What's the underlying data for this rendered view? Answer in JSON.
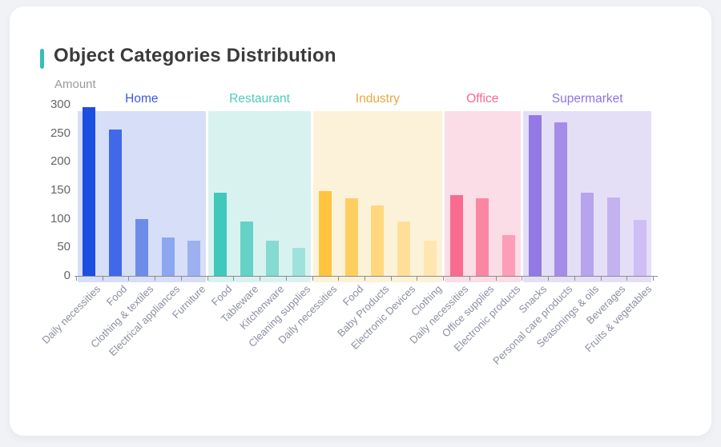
{
  "page": {
    "background_color": "#F1F2F5",
    "card_background_color": "#FFFFFF"
  },
  "header": {
    "title": "Object Categories Distribution",
    "accent_color": "#38BFB2"
  },
  "chart_data": {
    "type": "bar",
    "title": "Object Categories Distribution",
    "ylabel": "Amount",
    "xlabel": "",
    "ylim": [
      0,
      300
    ],
    "yticks": [
      0,
      50,
      100,
      150,
      200,
      250,
      300
    ],
    "grid": false,
    "legend_position": "none",
    "axis_color": "#8D8D8D",
    "ytick_label_color": "#666666",
    "xtick_label_color": "#8B90A0",
    "groups": [
      {
        "name": "Home",
        "label_color": "#3A5AE0",
        "band_color": "#D6DEF8",
        "bar_colors": [
          "#1D4EE2",
          "#3F69E8",
          "#6D8CEA",
          "#8CA6EF",
          "#9DB1F1"
        ],
        "items": [
          {
            "label": "Daily necessities",
            "value": 296
          },
          {
            "label": "Food",
            "value": 256
          },
          {
            "label": "Clothing & textiles",
            "value": 100
          },
          {
            "label": "Electrical appliances",
            "value": 67
          },
          {
            "label": "Furniture",
            "value": 61
          }
        ]
      },
      {
        "name": "Restaurant",
        "label_color": "#4FCBBD",
        "band_color": "#D8F2F0",
        "bar_colors": [
          "#3FC8BC",
          "#65D2C8",
          "#85DAD2",
          "#9FE2DC"
        ],
        "items": [
          {
            "label": "Food",
            "value": 146
          },
          {
            "label": "Tableware",
            "value": 95
          },
          {
            "label": "Kitchenware",
            "value": 62
          },
          {
            "label": "Cleaning supplies",
            "value": 49
          }
        ]
      },
      {
        "name": "Industry",
        "label_color": "#E8A93D",
        "band_color": "#FCF2D9",
        "bar_colors": [
          "#FFC440",
          "#FFCE60",
          "#FFD77E",
          "#FFDF98",
          "#FFE6B0"
        ],
        "items": [
          {
            "label": "Daily necessities",
            "value": 149
          },
          {
            "label": "Food",
            "value": 136
          },
          {
            "label": "Baby Products",
            "value": 123
          },
          {
            "label": "Electronic Devices",
            "value": 96
          },
          {
            "label": "Clothing",
            "value": 61
          }
        ]
      },
      {
        "name": "Office",
        "label_color": "#F9688E",
        "band_color": "#FBDDE7",
        "bar_colors": [
          "#FA6B90",
          "#FB86A3",
          "#FD9DB7"
        ],
        "items": [
          {
            "label": "Daily necessities",
            "value": 141
          },
          {
            "label": "Office supplies",
            "value": 136
          },
          {
            "label": "Electronic products",
            "value": 72
          }
        ]
      },
      {
        "name": "Supermarket",
        "label_color": "#8D74E2",
        "band_color": "#E4DFF7",
        "bar_colors": [
          "#9379E5",
          "#A58CE9",
          "#B8A3EE",
          "#C4B2F0",
          "#CEBEF3"
        ],
        "items": [
          {
            "label": "Snacks",
            "value": 282
          },
          {
            "label": "Personal care products",
            "value": 269
          },
          {
            "label": "Seasonings & oils",
            "value": 146
          },
          {
            "label": "Beverages",
            "value": 138
          },
          {
            "label": "Fruits & vegetables",
            "value": 98
          }
        ]
      }
    ]
  }
}
